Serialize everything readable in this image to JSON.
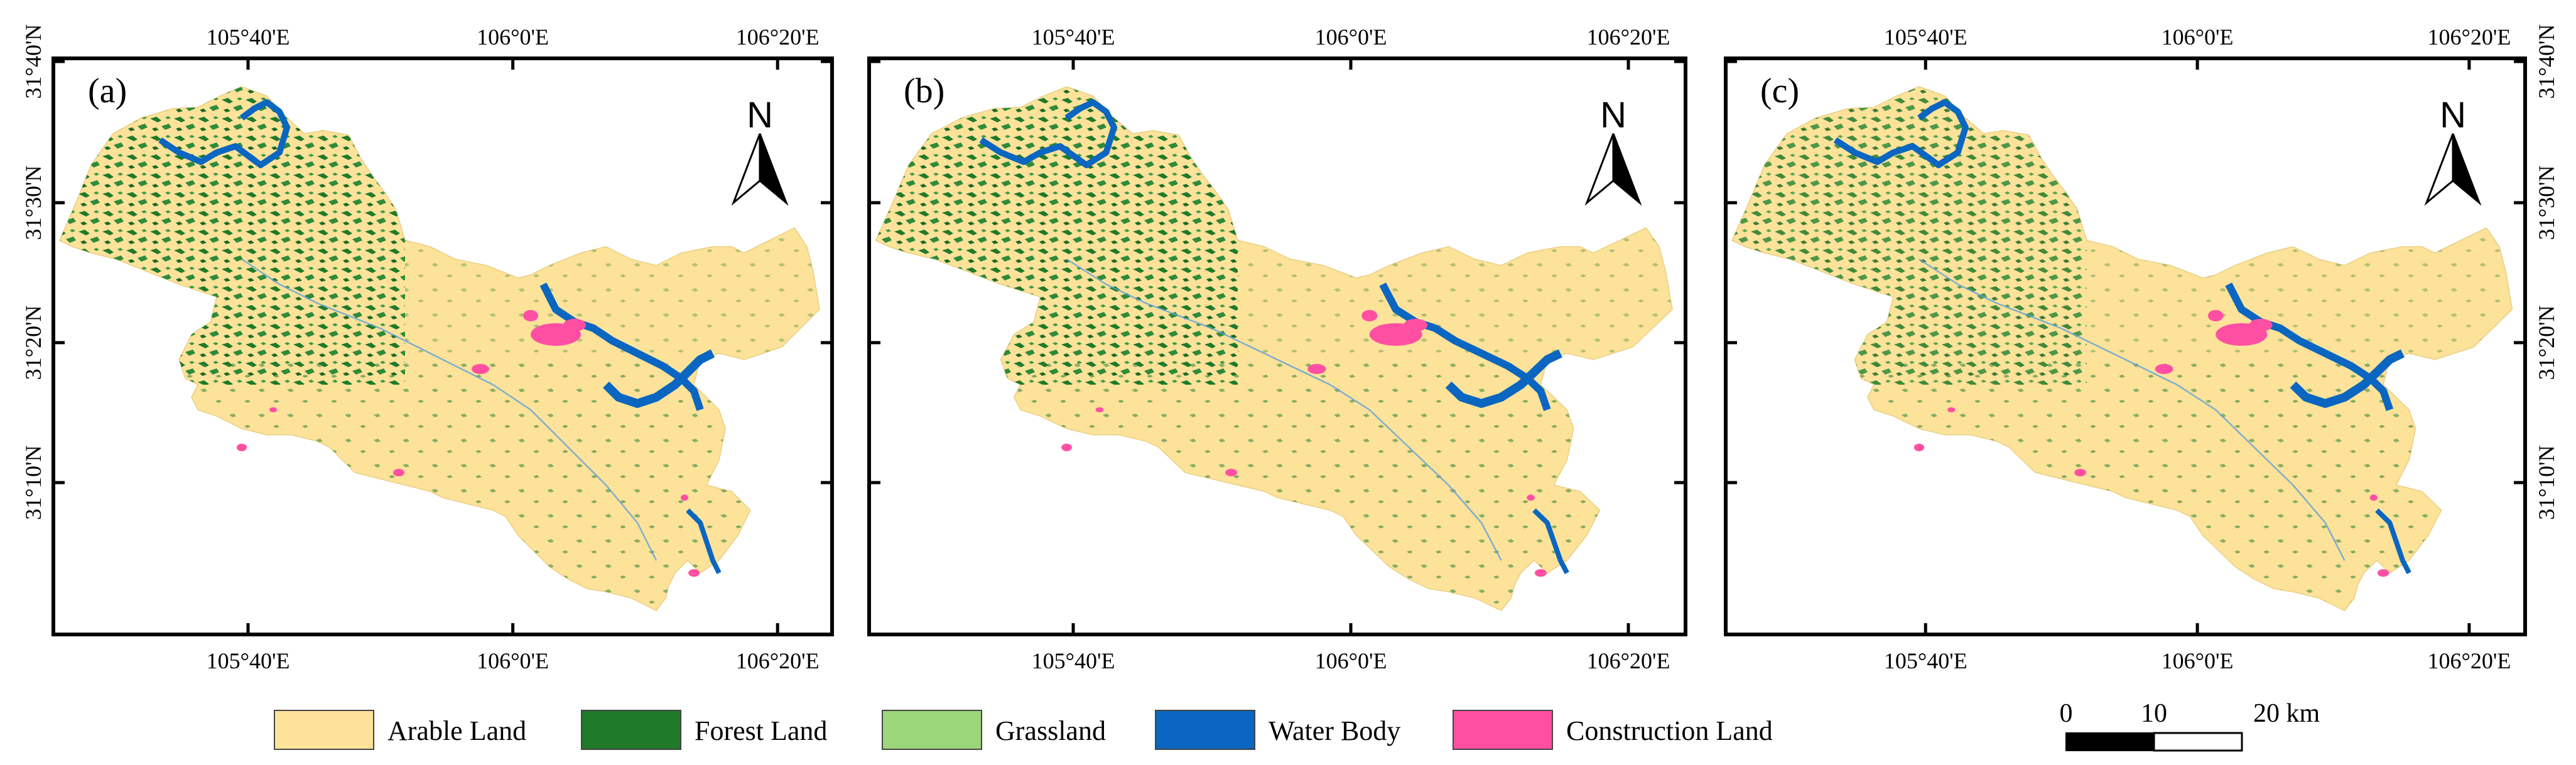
{
  "maps": [
    {
      "label": "(a)"
    },
    {
      "label": "(b)"
    },
    {
      "label": "(c)"
    }
  ],
  "axes": {
    "x_ticks": [
      "105°40'E",
      "106°0'E",
      "106°20'E"
    ],
    "y_ticks": [
      "31°40'N",
      "31°30'N",
      "31°20'N",
      "31°10'N"
    ]
  },
  "north_arrow": {
    "letter": "N",
    "icon": "north-arrow-icon"
  },
  "legend": [
    {
      "label": "Arable Land",
      "color": "#fde29a"
    },
    {
      "label": "Forest Land",
      "color": "#1f7a2a"
    },
    {
      "label": "Grassland",
      "color": "#9cd67a"
    },
    {
      "label": "Water Body",
      "color": "#0a66c0"
    },
    {
      "label": "Construction Land",
      "color": "#ff4fa3"
    }
  ],
  "scale_bar": {
    "labels": [
      "0",
      "10",
      "20 km"
    ]
  }
}
